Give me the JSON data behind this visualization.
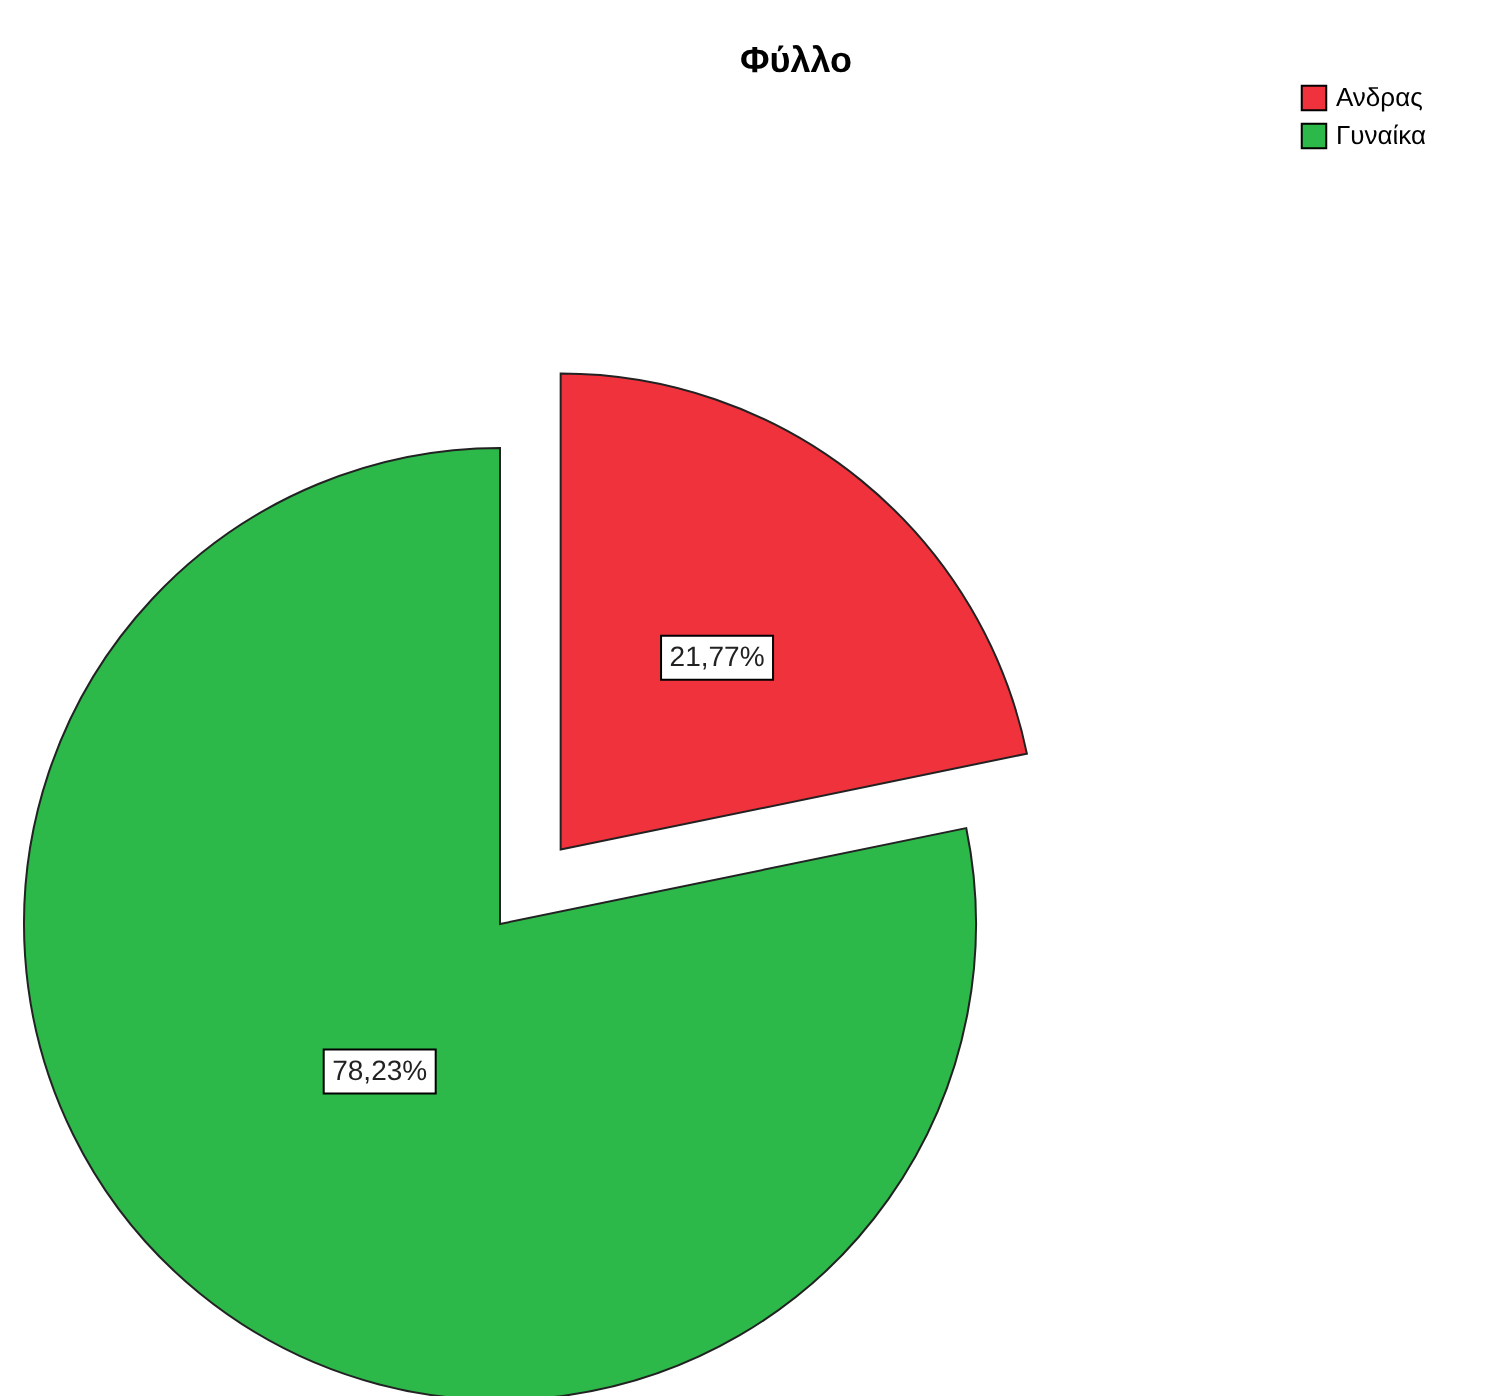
{
  "chart_data": {
    "type": "pie",
    "title": "Φύλλο",
    "categories": [
      "Ανδρας",
      "Γυναίκα"
    ],
    "values": [
      21.77,
      78.23
    ],
    "colors": [
      "#f0323c",
      "#2db84a"
    ],
    "value_labels": [
      "21,77%",
      "78,23%"
    ],
    "legend": "top right"
  }
}
